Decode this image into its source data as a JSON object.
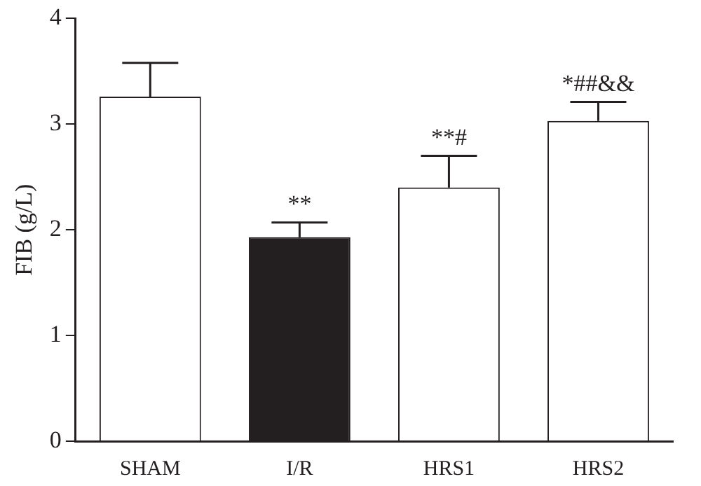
{
  "chart_data": {
    "type": "bar",
    "ylabel": "FIB (g/L)",
    "categories": [
      "SHAM",
      "I/R",
      "HRS1",
      "HRS2"
    ],
    "values": [
      3.26,
      1.93,
      2.4,
      3.03
    ],
    "colors": [
      "#ffffff",
      "#231f20",
      "#ffffff",
      "#ffffff"
    ],
    "errors": [
      [
        3.26,
        3.58
      ],
      [
        1.93,
        2.07
      ],
      [
        2.4,
        2.7
      ],
      [
        3.03,
        3.21
      ]
    ],
    "ylim": [
      0,
      4
    ],
    "yticks": [
      0,
      1,
      2,
      3,
      4
    ],
    "grid": false,
    "legend": false,
    "annotations": [
      {
        "text": "**",
        "x": "I/R",
        "y": 2.07
      },
      {
        "text": "**#",
        "x": "HRS1",
        "y": 2.7
      },
      {
        "text": "*##&&",
        "x": "HRS2",
        "y": 3.21
      }
    ]
  }
}
